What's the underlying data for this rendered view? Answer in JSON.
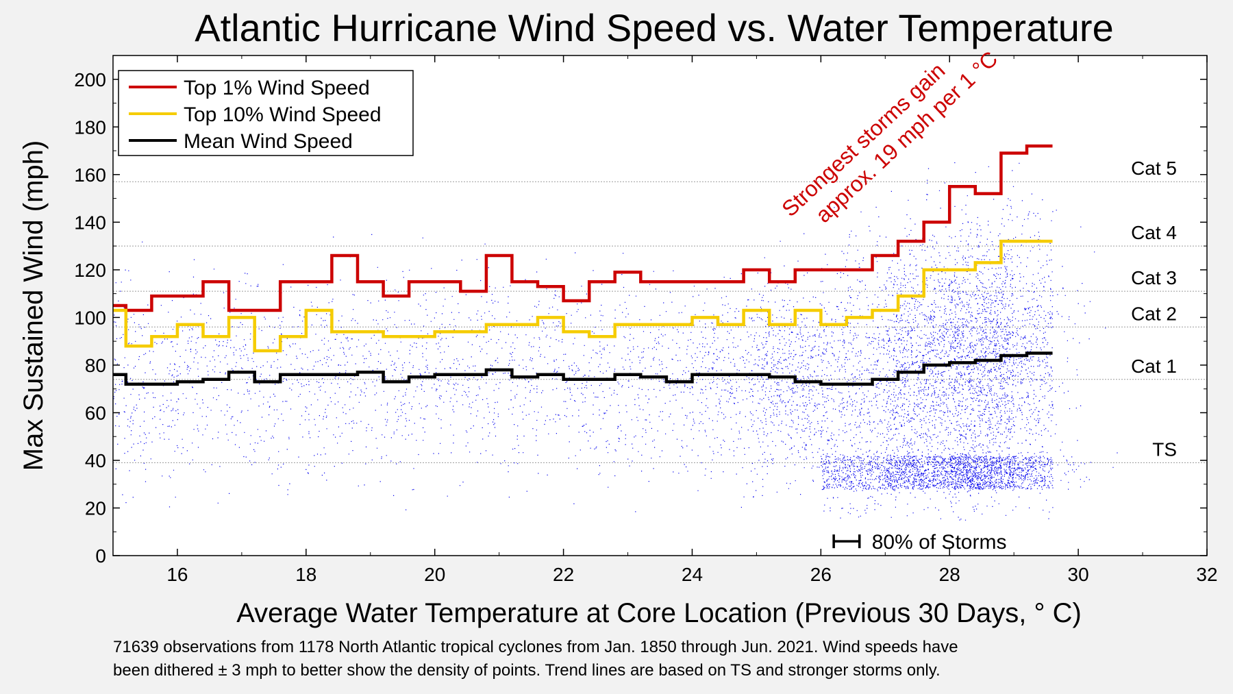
{
  "chart_data": {
    "type": "scatter",
    "title": "Atlantic Hurricane Wind Speed vs. Water Temperature",
    "xlabel": "Average Water Temperature at Core Location (Previous 30 Days, ° C)",
    "ylabel": "Max Sustained Wind (mph)",
    "xlim": [
      15,
      32
    ],
    "ylim": [
      0,
      210
    ],
    "xticks": [
      16,
      18,
      20,
      22,
      24,
      26,
      28,
      30,
      32
    ],
    "yticks": [
      0,
      20,
      40,
      60,
      80,
      100,
      120,
      140,
      160,
      180,
      200
    ],
    "grid": false,
    "legend_position": "top-left",
    "categories": [
      {
        "label": "TS",
        "wind_mph": 39
      },
      {
        "label": "Cat 1",
        "wind_mph": 74
      },
      {
        "label": "Cat 2",
        "wind_mph": 96
      },
      {
        "label": "Cat 3",
        "wind_mph": 111
      },
      {
        "label": "Cat 4",
        "wind_mph": 130
      },
      {
        "label": "Cat 5",
        "wind_mph": 157
      }
    ],
    "series": [
      {
        "name": "Top 1% Wind Speed",
        "color": "#cc0000",
        "step_width": 0.4,
        "x": [
          15.0,
          15.2,
          15.6,
          16.0,
          16.4,
          16.8,
          17.2,
          17.6,
          18.0,
          18.4,
          18.8,
          19.2,
          19.6,
          20.0,
          20.4,
          20.8,
          21.2,
          21.6,
          22.0,
          22.4,
          22.8,
          23.2,
          23.6,
          24.0,
          24.4,
          24.8,
          25.2,
          25.6,
          26.0,
          26.4,
          26.8,
          27.2,
          27.6,
          28.0,
          28.4,
          28.8,
          29.2
        ],
        "y": [
          105,
          103,
          109,
          109,
          115,
          103,
          103,
          115,
          115,
          126,
          115,
          109,
          115,
          115,
          111,
          126,
          115,
          113,
          107,
          115,
          119,
          115,
          115,
          115,
          115,
          120,
          115,
          120,
          120,
          120,
          126,
          132,
          140,
          155,
          152,
          169,
          172
        ]
      },
      {
        "name": "Top 10% Wind Speed",
        "color": "#f5cc00",
        "step_width": 0.4,
        "x": [
          15.0,
          15.2,
          15.6,
          16.0,
          16.4,
          16.8,
          17.2,
          17.6,
          18.0,
          18.4,
          18.8,
          19.2,
          19.6,
          20.0,
          20.4,
          20.8,
          21.2,
          21.6,
          22.0,
          22.4,
          22.8,
          23.2,
          23.6,
          24.0,
          24.4,
          24.8,
          25.2,
          25.6,
          26.0,
          26.4,
          26.8,
          27.2,
          27.6,
          28.0,
          28.4,
          28.8,
          29.2
        ],
        "y": [
          103,
          88,
          92,
          97,
          92,
          100,
          86,
          92,
          103,
          94,
          94,
          92,
          92,
          94,
          94,
          97,
          97,
          100,
          94,
          92,
          97,
          97,
          97,
          100,
          97,
          103,
          97,
          103,
          97,
          100,
          103,
          109,
          120,
          120,
          123,
          132,
          132
        ]
      },
      {
        "name": "Mean Wind Speed",
        "color": "#000000",
        "step_width": 0.4,
        "x": [
          15.0,
          15.2,
          15.6,
          16.0,
          16.4,
          16.8,
          17.2,
          17.6,
          18.0,
          18.4,
          18.8,
          19.2,
          19.6,
          20.0,
          20.4,
          20.8,
          21.2,
          21.6,
          22.0,
          22.4,
          22.8,
          23.2,
          23.6,
          24.0,
          24.4,
          24.8,
          25.2,
          25.6,
          26.0,
          26.4,
          26.8,
          27.2,
          27.6,
          28.0,
          28.4,
          28.8,
          29.2
        ],
        "y": [
          76,
          72,
          72,
          73,
          74,
          77,
          73,
          76,
          76,
          76,
          77,
          73,
          75,
          76,
          76,
          78,
          75,
          76,
          74,
          74,
          76,
          75,
          73,
          76,
          76,
          76,
          75,
          73,
          72,
          72,
          74,
          77,
          80,
          81,
          82,
          84,
          85
        ]
      }
    ],
    "annotation": {
      "line1": "Strongest storms gain",
      "line2": "approx. 19 mph per 1 °C",
      "color": "#cc0000"
    },
    "storms_bar": {
      "x_start": 26.2,
      "x_end": 26.6,
      "y": 6,
      "label": "80% of Storms"
    },
    "scatter_color": "#0000ee",
    "observations": 71639,
    "footnote_line1": "71639 observations from 1178 North Atlantic tropical cyclones from Jan. 1850 through Jun. 2021.  Wind speeds have",
    "footnote_line2": "been dithered ± 3 mph to better show the density of points.  Trend lines are based on TS and stronger storms only."
  }
}
